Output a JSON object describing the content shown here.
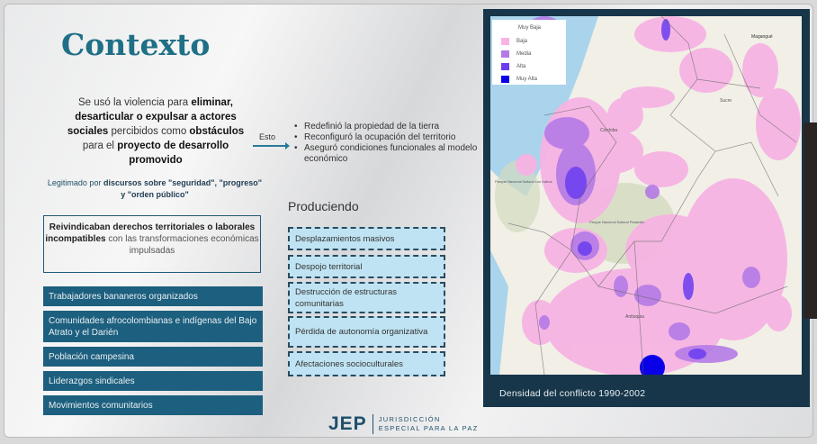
{
  "slide": {
    "title": "Contexto",
    "intro": {
      "p1": "Se usó la violencia para ",
      "b1": "eliminar, desarticular o expulsar a actores sociales",
      "p2": " percibidos como ",
      "b2": "obstáculos",
      "p3": " para el ",
      "b3": "proyecto de desarrollo promovido"
    },
    "legit": {
      "p1": "Legitimado por ",
      "b1": "discursos sobre \"seguridad\", \"progreso\" y \"orden público\""
    },
    "claim_box": {
      "b1": "Reivindicaban derechos territoriales o laborales incompatibles",
      "p1": " con las transformaciones económicas impulsadas"
    },
    "groups": [
      "Trabajadores bananeros organizados",
      "Comunidades afrocolombianas e indígenas del Bajo Atrato y el Darién",
      "Población campesina",
      "Liderazgos sindicales",
      "Movimientos comunitarios"
    ],
    "arrow_label": "Esto",
    "outcomes": [
      "Redefinió la propiedad de la tierra",
      "Reconfiguró la ocupación del territorio",
      "Aseguró condiciones funcionales al modelo económico"
    ],
    "producing_title": "Produciendo",
    "effects": [
      "Desplazamientos masivos",
      "Despojo territorial",
      "Destrucción de estructuras comunitarias",
      "Pérdida de autonomía organizativa",
      "Afectaciones socioculturales"
    ]
  },
  "map": {
    "caption": "Densidad del conflicto 1990-2002",
    "legend": [
      {
        "label": "Muy Baja",
        "color": "#ffffff"
      },
      {
        "label": "Baja",
        "color": "#f7b3e3"
      },
      {
        "label": "Media",
        "color": "#b47be6"
      },
      {
        "label": "Alta",
        "color": "#6a3df0"
      },
      {
        "label": "Muy Alta",
        "color": "#0a00e8"
      }
    ],
    "place_labels": {
      "magangue": "Magangué",
      "cordoba": "Córdoba",
      "sucre": "Sucre",
      "antioquia": "Antioquia",
      "katios": "Parque Nacional Natural Los Katíos",
      "paramillo": "Parque Nacional Natural Paramillo"
    }
  },
  "footer": {
    "logo": "JEP",
    "org_line1": "JURISDICCIÓN",
    "org_line2": "ESPECIAL PARA LA PAZ"
  }
}
